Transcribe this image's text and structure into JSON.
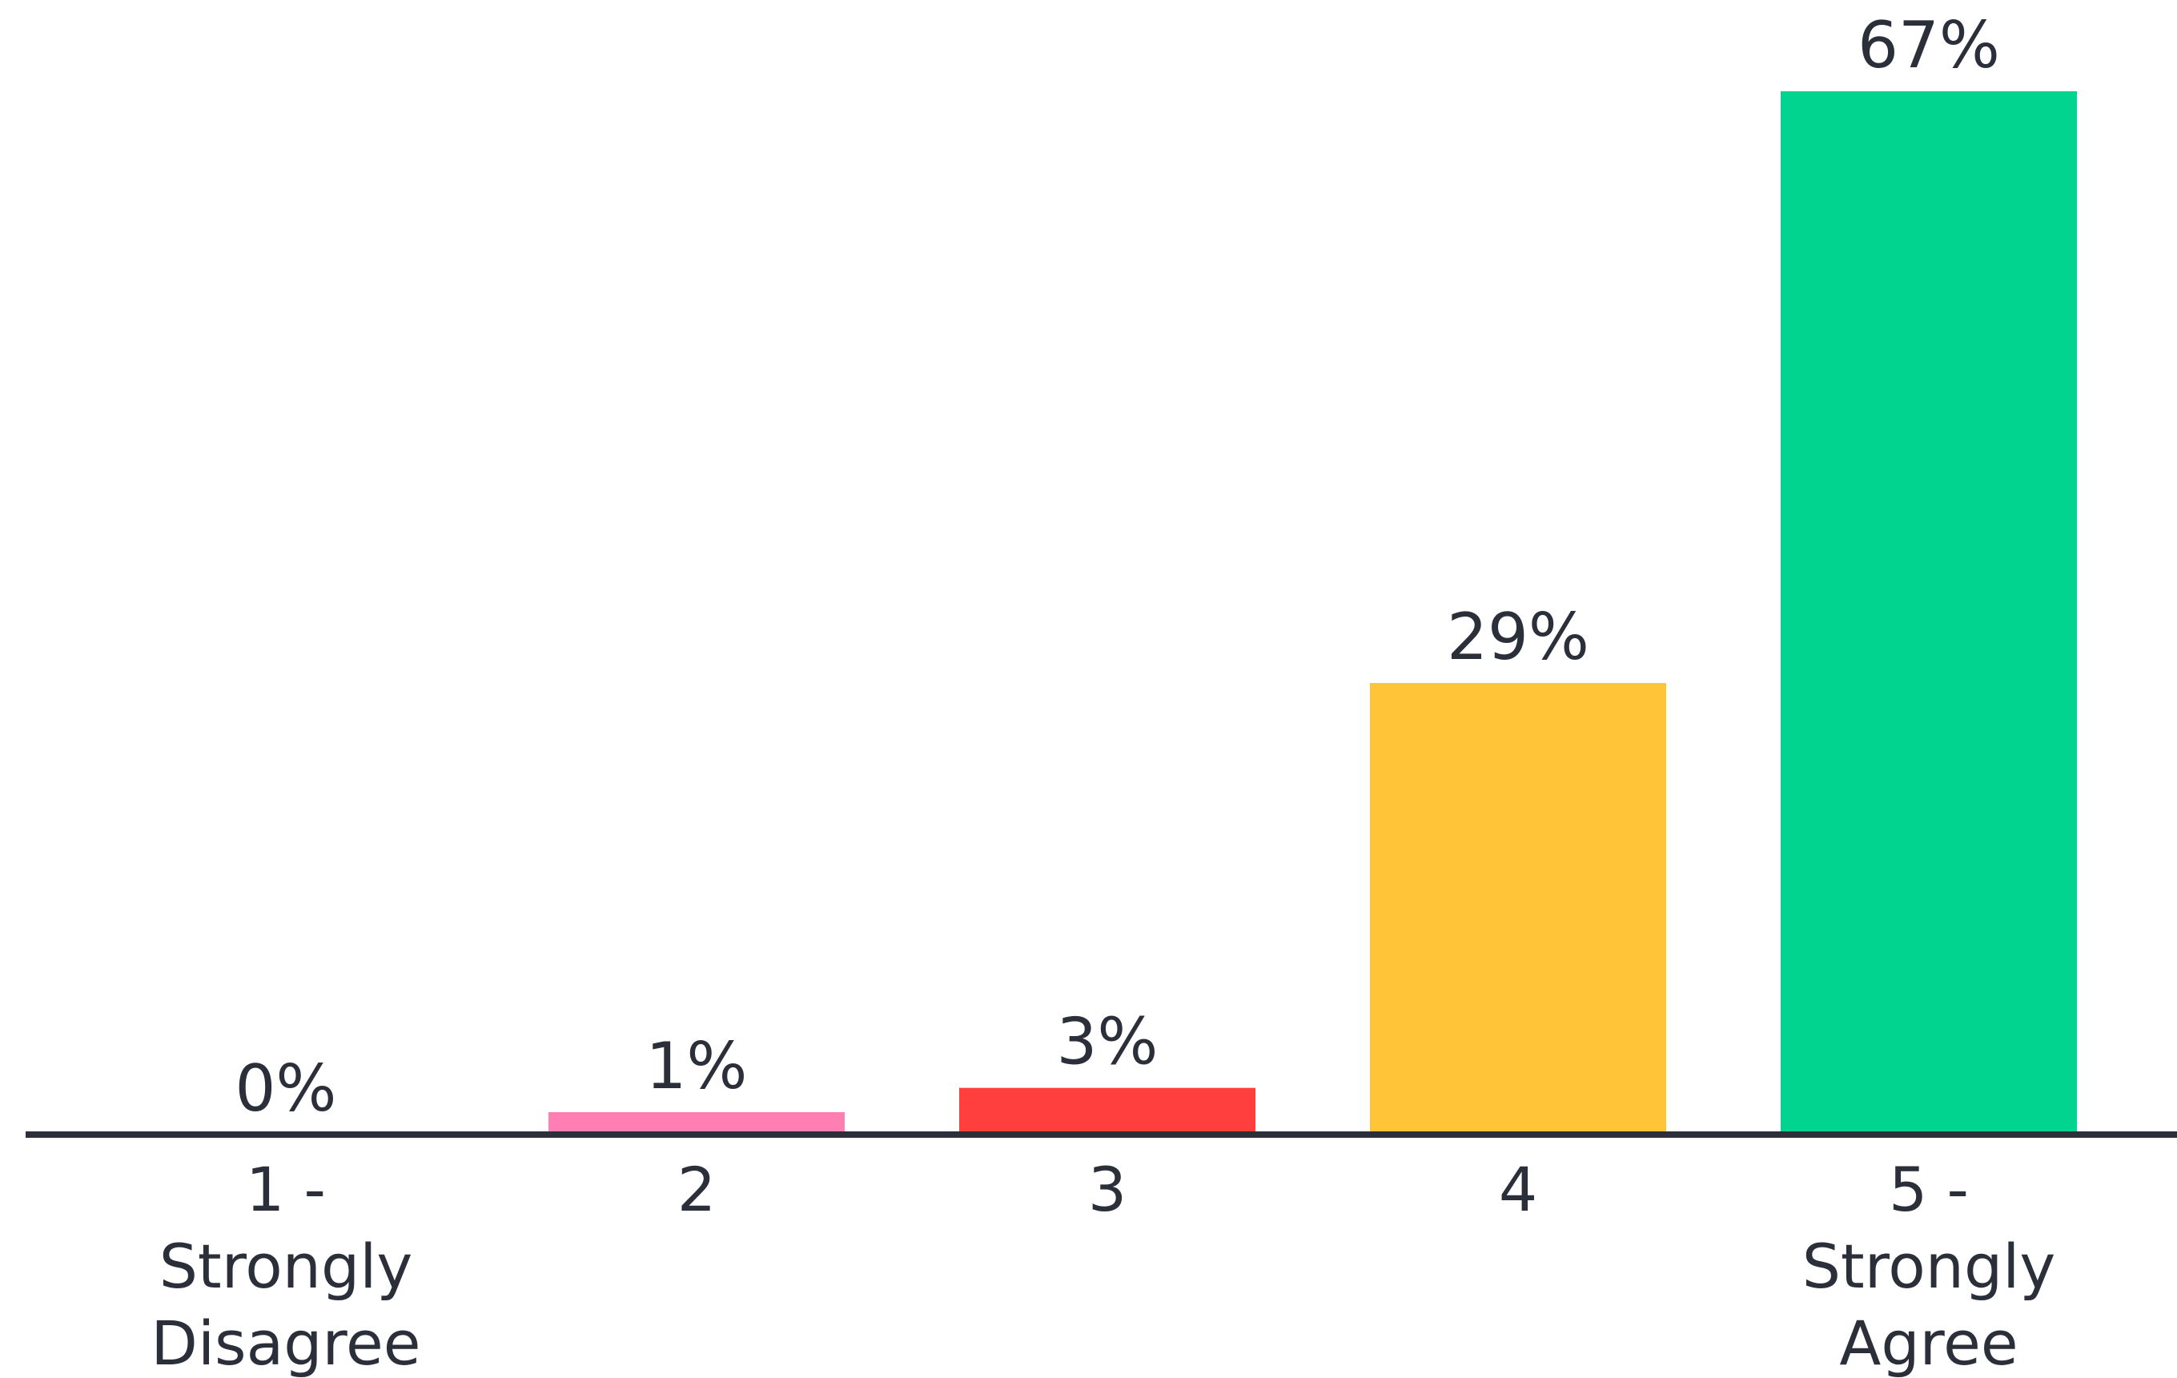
{
  "chart_data": {
    "type": "bar",
    "categories": [
      [
        "1 -",
        "Strongly",
        "Disagree"
      ],
      [
        "2"
      ],
      [
        "3"
      ],
      [
        "4"
      ],
      [
        "5 -",
        "Strongly",
        "Agree"
      ]
    ],
    "values": [
      0,
      1,
      3,
      29,
      67
    ],
    "value_labels": [
      "0%",
      "1%",
      "3%",
      "29%",
      "67%"
    ],
    "colors": [
      "#ff7fb4",
      "#ff7fb4",
      "#ff3e3e",
      "#ffc437",
      "#00d48f"
    ],
    "axis_color": "#2b2f3a",
    "title": "",
    "xlabel": "",
    "ylabel": "",
    "ylim": [
      0,
      67
    ],
    "grid": false,
    "legend": "none"
  }
}
